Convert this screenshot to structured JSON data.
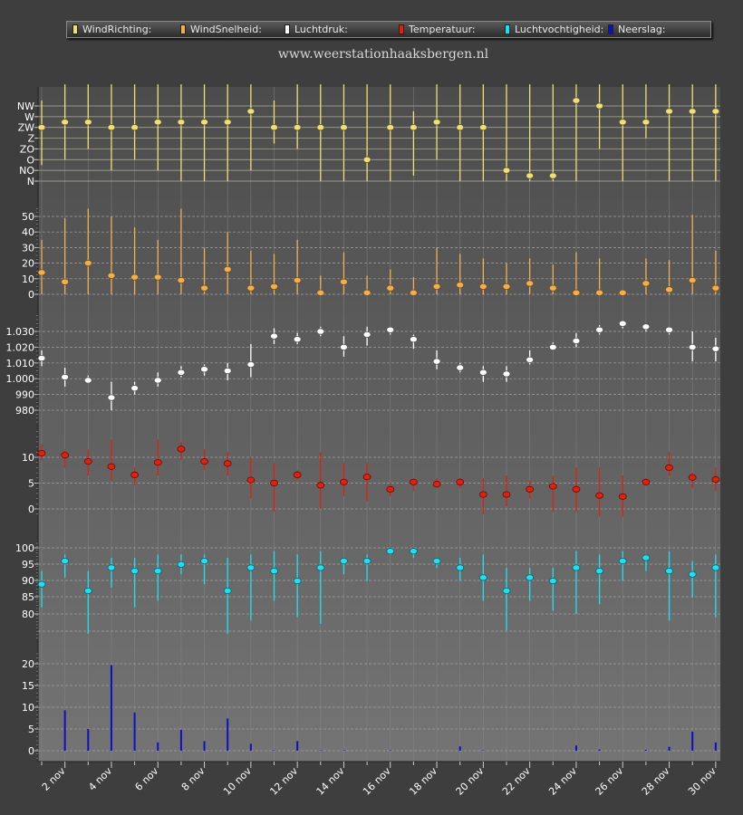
{
  "site_title": "www.weerstationhaaksbergen.nl",
  "legend": [
    {
      "label": "WindRichting:",
      "color": "#f0e070"
    },
    {
      "label": "WindSnelheid:",
      "color": "#f0b050"
    },
    {
      "label": "Luchtdruk:",
      "color": "#ffffff"
    },
    {
      "label": "Temperatuur:",
      "color": "#e02010"
    },
    {
      "label": "Luchtvochtigheid:",
      "color": "#20e0f0"
    },
    {
      "label": "Neerslag:",
      "color": "#1010c0"
    }
  ],
  "chart_data": [
    {
      "type": "scatter",
      "name": "WindRichting",
      "x": [
        1,
        2,
        3,
        4,
        5,
        6,
        7,
        8,
        9,
        10,
        11,
        12,
        13,
        14,
        15,
        16,
        17,
        18,
        19,
        20,
        21,
        22,
        23,
        24,
        25,
        26,
        27,
        28,
        29,
        30
      ],
      "values": [
        5,
        5.5,
        5.5,
        5,
        5,
        5.5,
        5.5,
        5.5,
        5.5,
        6.5,
        5,
        5,
        5,
        5,
        2,
        5,
        5,
        5.5,
        5,
        5,
        1,
        0.5,
        0.5,
        7.5,
        7,
        5.5,
        5.5,
        6.5,
        6.5,
        6.5
      ],
      "low": [
        1.5,
        2,
        3,
        1,
        2,
        1,
        0,
        0,
        0,
        1,
        3.5,
        3,
        0,
        0,
        0,
        0,
        0.5,
        2,
        0,
        0,
        0,
        0,
        0,
        0,
        3,
        0,
        4,
        0,
        0,
        0
      ],
      "high": [
        6.5,
        8,
        8,
        8,
        8,
        8,
        8,
        8,
        8,
        8,
        6.5,
        8,
        8,
        8,
        8,
        8,
        5.5,
        8,
        8,
        8,
        8,
        8,
        8,
        8,
        8,
        8,
        8,
        8,
        8,
        8
      ],
      "yticks": [
        "N",
        "NO",
        "O",
        "ZO",
        "Z",
        "ZW",
        "W",
        "NW"
      ],
      "color": "#f0e070"
    },
    {
      "type": "scatter",
      "name": "WindSnelheid",
      "x": [
        1,
        2,
        3,
        4,
        5,
        6,
        7,
        8,
        9,
        10,
        11,
        12,
        13,
        14,
        15,
        16,
        17,
        18,
        19,
        20,
        21,
        22,
        23,
        24,
        25,
        26,
        27,
        28,
        29,
        30
      ],
      "values": [
        14,
        8,
        20,
        12,
        11,
        11,
        9,
        4,
        16,
        4,
        5,
        9,
        1,
        8,
        1,
        4,
        1,
        5,
        6,
        5,
        5,
        7,
        4,
        1,
        1,
        1,
        7,
        3,
        9,
        4
      ],
      "low": [
        0,
        0,
        0,
        0,
        0,
        0,
        0,
        0,
        0,
        0,
        0,
        0,
        0,
        0,
        0,
        0,
        0,
        0,
        0,
        0,
        0,
        0,
        0,
        0,
        0,
        0,
        0,
        0,
        0,
        0
      ],
      "high": [
        35,
        49,
        55,
        50,
        43,
        35,
        55,
        30,
        40,
        28,
        26,
        35,
        12,
        27,
        12,
        16,
        11,
        30,
        26,
        23,
        20,
        23,
        19,
        27,
        23,
        0,
        23,
        22,
        51,
        28
      ],
      "yticks": [
        0,
        10,
        20,
        30,
        40,
        50
      ],
      "ylim": [
        0,
        58
      ],
      "color": "#f0b050"
    },
    {
      "type": "scatter",
      "name": "Luchtdruk",
      "x": [
        1,
        2,
        3,
        4,
        5,
        6,
        7,
        8,
        9,
        10,
        11,
        12,
        13,
        14,
        15,
        16,
        17,
        18,
        19,
        20,
        21,
        22,
        23,
        24,
        25,
        26,
        27,
        28,
        29,
        30
      ],
      "values": [
        1013,
        1001,
        999,
        988,
        994,
        999,
        1004,
        1006,
        1005,
        1009,
        1027,
        1025,
        1030,
        1020,
        1028,
        1031,
        1025,
        1011,
        1007,
        1004,
        1003,
        1012,
        1020,
        1024,
        1031,
        1035,
        1033,
        1031,
        1020,
        1019
      ],
      "low": [
        1008,
        995,
        997,
        980,
        990,
        995,
        1001,
        1002,
        999,
        1001,
        1022,
        1022,
        1027,
        1014,
        1021,
        1028,
        1019,
        1006,
        1004,
        998,
        998,
        1009,
        1018,
        1020,
        1028,
        1032,
        1030,
        1028,
        1011,
        1011
      ],
      "high": [
        1018,
        1007,
        1002,
        998,
        998,
        1004,
        1008,
        1009,
        1010,
        1022,
        1032,
        1029,
        1033,
        1027,
        1033,
        1033,
        1028,
        1018,
        1010,
        1008,
        1008,
        1018,
        1023,
        1029,
        1034,
        1036,
        1035,
        1033,
        1030,
        1026
      ],
      "yticks": [
        "980",
        "990",
        "1.000",
        "1.010",
        "1.020",
        "1.030"
      ],
      "color": "#ffffff"
    },
    {
      "type": "scatter",
      "name": "Temperatuur",
      "x": [
        1,
        2,
        3,
        4,
        5,
        6,
        7,
        8,
        9,
        10,
        11,
        12,
        13,
        14,
        15,
        16,
        17,
        18,
        19,
        20,
        21,
        22,
        23,
        24,
        25,
        26,
        27,
        28,
        29,
        30
      ],
      "values": [
        10.8,
        10.4,
        9.2,
        8.2,
        6.6,
        9,
        11.6,
        9.2,
        8.8,
        5.6,
        5,
        6.6,
        4.6,
        5.2,
        6.2,
        3.8,
        5.2,
        4.8,
        5.2,
        2.8,
        2.8,
        3.8,
        4.4,
        3.8,
        2.6,
        2.4,
        5.2,
        8,
        6.1,
        5.7
      ],
      "low": [
        9.5,
        8,
        6.5,
        5.5,
        4.5,
        6.5,
        9.5,
        7.5,
        6.5,
        2,
        -0.5,
        5.5,
        0,
        2.5,
        1.5,
        2.5,
        3.5,
        4,
        4,
        -1,
        0.5,
        2,
        -0.5,
        -0.5,
        -1.5,
        -1.5,
        4.5,
        6.5,
        4,
        3.5
      ],
      "high": [
        12.5,
        11.5,
        11.5,
        13.5,
        8,
        13.5,
        13,
        11.5,
        11,
        10,
        9,
        7.5,
        11,
        9,
        9,
        5,
        6,
        6,
        6,
        6,
        6.5,
        5.5,
        6.5,
        8,
        8,
        6.5,
        6,
        11,
        7,
        8
      ],
      "yticks": [
        0,
        5,
        10
      ],
      "ylim": [
        -2,
        15
      ],
      "color": "#e02010"
    },
    {
      "type": "scatter",
      "name": "Luchtvochtigheid",
      "x": [
        1,
        2,
        3,
        4,
        5,
        6,
        7,
        8,
        9,
        10,
        11,
        12,
        13,
        14,
        15,
        16,
        17,
        18,
        19,
        20,
        21,
        22,
        23,
        24,
        25,
        26,
        27,
        28,
        29,
        30
      ],
      "values": [
        89,
        96,
        87,
        94,
        93,
        93,
        95,
        96,
        87,
        94,
        93,
        90,
        94,
        96,
        96,
        99,
        99,
        96,
        94,
        91,
        87,
        91,
        90,
        94,
        93,
        96,
        97,
        93,
        92,
        94
      ],
      "low": [
        82,
        91,
        74,
        88,
        82,
        84,
        92,
        89,
        74,
        78,
        84,
        79,
        77,
        92,
        90,
        98,
        97,
        94,
        90,
        84,
        75,
        84,
        81,
        80,
        83,
        90,
        93,
        78,
        85,
        79
      ],
      "high": [
        93,
        98,
        93,
        97,
        97,
        98,
        98,
        98,
        97,
        98,
        99,
        98,
        99,
        97,
        98,
        99,
        99,
        97,
        97,
        98,
        94,
        94,
        94,
        99,
        98,
        99,
        98,
        99,
        96,
        98
      ],
      "yticks": [
        80,
        85,
        90,
        95,
        100
      ],
      "color": "#20e0f0"
    },
    {
      "type": "bar",
      "name": "Neerslag",
      "x": [
        1,
        2,
        3,
        4,
        5,
        6,
        7,
        8,
        9,
        10,
        11,
        12,
        13,
        14,
        15,
        16,
        17,
        18,
        19,
        20,
        21,
        22,
        23,
        24,
        25,
        26,
        27,
        28,
        29,
        30
      ],
      "values": [
        0,
        9.3,
        5,
        19.7,
        8.8,
        1.9,
        4.8,
        2.2,
        7.4,
        1.6,
        0.1,
        2.2,
        0.1,
        0.1,
        0,
        0.1,
        0,
        0,
        1,
        0.1,
        0,
        0,
        0,
        1.2,
        0.3,
        0,
        0.2,
        0.9,
        4.4,
        1.9
      ],
      "yticks": [
        0,
        5,
        10,
        15,
        20
      ],
      "ylim": [
        -2,
        22
      ],
      "color": "#1010c0"
    }
  ],
  "x_ticks": [
    "2 nov",
    "4 nov",
    "6 nov",
    "8 nov",
    "10 nov",
    "12 nov",
    "14 nov",
    "16 nov",
    "18 nov",
    "20 nov",
    "22 nov",
    "24 nov",
    "26 nov",
    "28 nov",
    "30 nov"
  ]
}
